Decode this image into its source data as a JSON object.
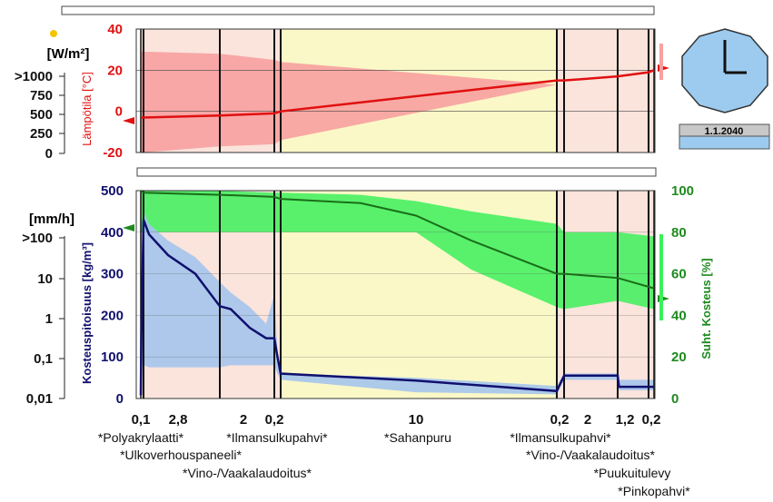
{
  "top_panel": {
    "irradiance_unit": "[W/m²]",
    "irradiance_ticks": [
      ">1000",
      "750",
      "500",
      "250",
      "0"
    ],
    "temp_label": "Lämpötila [°C]",
    "temp_ticks": [
      "40",
      "20",
      "0",
      "-20"
    ]
  },
  "bottom_panel": {
    "rain_unit": "[mm/h]",
    "rain_ticks": [
      ">100",
      "10",
      "1",
      "0,1",
      "0,01"
    ],
    "moisture_label": "Kosteuspitoisuus [kg/m³]",
    "moisture_ticks": [
      "500",
      "400",
      "300",
      "200",
      "100",
      "0"
    ],
    "rh_label": "Suht. Kosteus [%]",
    "rh_ticks": [
      "100",
      "80",
      "60",
      "40",
      "20",
      "0"
    ]
  },
  "clock": {
    "date": "1.1.2040"
  },
  "layers": {
    "thickness_labels": [
      "0,1",
      "2,8",
      "2",
      "0,2",
      "10",
      "0,2",
      "2",
      "1,2",
      "0,2"
    ],
    "names": [
      "*Polyakrylaatti*",
      "*Ulkoverhouspaneeli*",
      "*Vino-/Vaakalaudoitus*",
      "*Ilmansulkupahvi*",
      "*Sahanpuru",
      "*Ilmansulkupahvi*",
      "*Vino-/Vaakalaudoitus*",
      "*Puukuitulevy",
      "*Pinkopahvi*"
    ]
  },
  "colors": {
    "temperature": "#e01010",
    "temperature_band": "#f7a0a0",
    "moisture": "#10106e",
    "moisture_band": "#a4c4ec",
    "rh": "#1a6e1a",
    "rh_band": "#3cf05a",
    "rh_axis": "#1e8a1e",
    "insulation_fill": "#fbf8c8",
    "board_fill": "#fbe4dc",
    "clock_face": "#9ccbef"
  },
  "chart_data": [
    {
      "type": "line",
      "title": "",
      "ylabel": "Lämpötila [°C]",
      "ylim": [
        -20,
        40
      ],
      "x_position": [
        0,
        0.1,
        2.9,
        4.9,
        5.1,
        15.1,
        15.3,
        17.3,
        18.5,
        18.7
      ],
      "series": [
        {
          "values": [
            -3,
            -3,
            -2,
            -1,
            0,
            15,
            15,
            17,
            19,
            20
          ]
        }
      ],
      "band": {
        "upper": [
          29,
          29,
          28,
          25,
          24,
          13,
          14,
          17,
          19,
          20
        ],
        "lower": [
          -20,
          -20,
          -17,
          -16,
          -14,
          13,
          14,
          17,
          19,
          20
        ]
      }
    },
    {
      "type": "line",
      "ylabel": "Kosteuspitoisuus [kg/m³]",
      "ylim": [
        0,
        500
      ],
      "x_position": [
        0,
        0.02,
        0.1,
        0.3,
        1.0,
        2.0,
        2.9,
        3.3,
        4.0,
        4.6,
        4.9,
        5.0,
        5.1,
        10.0,
        15.1,
        15.3,
        17.3,
        17.35,
        18.5,
        18.7
      ],
      "series": [
        {
          "values": [
            8,
            150,
            430,
            395,
            345,
            300,
            222,
            215,
            170,
            145,
            145,
            100,
            60,
            43,
            18,
            55,
            55,
            28,
            28,
            28
          ]
        }
      ],
      "band": {
        "upper": [
          10,
          170,
          450,
          420,
          380,
          340,
          280,
          255,
          220,
          180,
          250,
          110,
          60,
          50,
          30,
          60,
          60,
          45,
          45,
          45
        ],
        "lower": [
          0,
          80,
          80,
          75,
          75,
          75,
          75,
          80,
          80,
          80,
          80,
          60,
          45,
          15,
          10,
          45,
          45,
          20,
          20,
          20
        ]
      }
    },
    {
      "type": "line",
      "ylabel": "Suht. Kosteus [%]",
      "ylim": [
        0,
        100
      ],
      "x_position": [
        0,
        0.1,
        2.9,
        4.9,
        5.1,
        8.0,
        10.0,
        12.0,
        15.1,
        15.3,
        17.3,
        18.7
      ],
      "series": [
        {
          "values": [
            100,
            99,
            98,
            97,
            96,
            94,
            88,
            76,
            60,
            60,
            58,
            53
          ]
        }
      ],
      "band": {
        "upper": [
          100,
          100,
          100,
          99,
          99,
          98,
          95,
          90,
          84,
          80,
          80,
          78
        ],
        "lower": [
          80,
          80,
          80,
          80,
          80,
          80,
          80,
          62,
          44,
          43,
          47,
          43
        ]
      }
    }
  ]
}
